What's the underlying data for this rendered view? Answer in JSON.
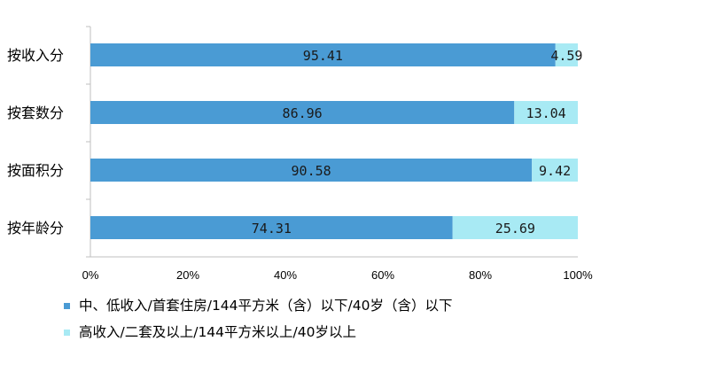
{
  "chart_data": {
    "type": "bar",
    "orientation": "horizontal",
    "stacked": "percent",
    "categories": [
      "按收入分",
      "按套数分",
      "按面积分",
      "按年龄分"
    ],
    "series": [
      {
        "name": "中、低收入/首套住房/144平方米（含）以下/40岁（含）以下",
        "values": [
          95.41,
          86.96,
          90.58,
          74.31
        ],
        "labels": [
          "95.41",
          "86.96",
          "90.58",
          "74.31"
        ],
        "color": "#4a9bd4"
      },
      {
        "name": "高收入/二套及以上/144平方米以上/40岁以上",
        "values": [
          4.59,
          13.04,
          9.42,
          25.69
        ],
        "labels": [
          "4.59",
          "13.04",
          "9.42",
          "25.69"
        ],
        "color": "#a8eaf4"
      }
    ],
    "xlim": [
      0,
      100
    ],
    "xticks": [
      "0%",
      "20%",
      "40%",
      "60%",
      "80%",
      "100%"
    ],
    "grid": false,
    "legend_position": "bottom"
  }
}
